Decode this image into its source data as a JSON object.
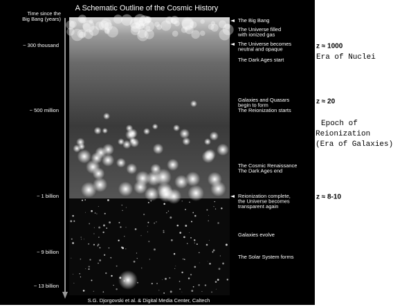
{
  "title": "A Schematic Outline of the Cosmic History",
  "axis_label": [
    "Time since the",
    "Big Bang (years)"
  ],
  "time_labels": [
    "~ 300 thousand",
    "~ 500 million",
    "~ 1 billion",
    "~ 9 billion",
    "~ 13 billion"
  ],
  "events": [
    [
      "The Big Bang"
    ],
    [
      "The Universe filled",
      "with ionized gas"
    ],
    [
      "The Universe becomes",
      "neutral and opaque"
    ],
    [
      "The Dark Ages start"
    ],
    [
      "Galaxies and Quasars",
      "begin to form",
      "The Reionization starts"
    ],
    [
      "The Cosmic Renaissance",
      "The Dark Ages end"
    ],
    [
      "Reionization complete,",
      "the Universe becomes",
      "transparent again"
    ],
    [
      "Galaxies evolve"
    ],
    [
      "The Solar System forms"
    ]
  ],
  "credit": "S.G. Djorgovski et al. & Digital Media Center, Caltech",
  "redshifts": [
    "z ≈ 1000",
    "z ≈ 20",
    "z ≈ 8-10"
  ],
  "era_of_nuclei": "Era of Nuclei",
  "epoch_note": [
    "Epoch of",
    "Reionization",
    "(Era of Galaxies)"
  ]
}
